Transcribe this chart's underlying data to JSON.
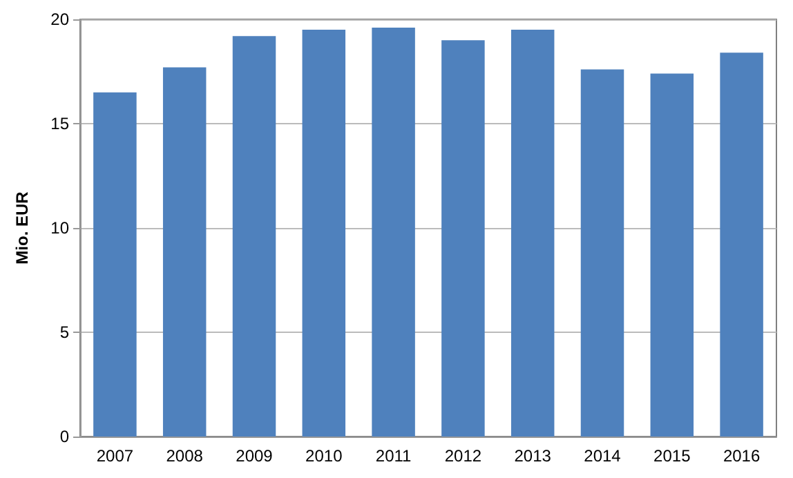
{
  "chart_data": {
    "type": "bar",
    "ylabel": "Mio. EUR",
    "categories": [
      "2007",
      "2008",
      "2009",
      "2010",
      "2011",
      "2012",
      "2013",
      "2014",
      "2015",
      "2016"
    ],
    "values": [
      16.5,
      17.7,
      19.2,
      19.5,
      19.6,
      19.0,
      19.5,
      17.6,
      17.4,
      18.4
    ],
    "color": "#4f81bd",
    "ylim": [
      0,
      20
    ],
    "yticks": [
      0,
      5,
      10,
      15,
      20
    ],
    "grid": "y"
  }
}
